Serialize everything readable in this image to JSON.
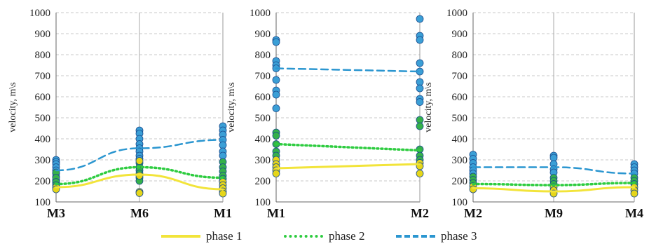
{
  "chart_data": [
    {
      "type": "scatter",
      "ylabel": "velocity, m\\s",
      "ylim": [
        100,
        1000
      ],
      "yticks": [
        100,
        200,
        300,
        400,
        500,
        600,
        700,
        800,
        900,
        1000
      ],
      "categories": [
        "M3",
        "M6",
        "M1"
      ],
      "grid": true,
      "points": [
        {
          "x": "M3",
          "y": 300,
          "color": "#3b9fd6"
        },
        {
          "x": "M3",
          "y": 290,
          "color": "#3b9fd6"
        },
        {
          "x": "M3",
          "y": 280,
          "color": "#3b9fd6"
        },
        {
          "x": "M3",
          "y": 265,
          "color": "#3b9fd6"
        },
        {
          "x": "M3",
          "y": 250,
          "color": "#3b9fd6"
        },
        {
          "x": "M3",
          "y": 235,
          "color": "#3b9fd6"
        },
        {
          "x": "M3",
          "y": 220,
          "color": "#3b9fd6"
        },
        {
          "x": "M3",
          "y": 205,
          "color": "#3b9fd6"
        },
        {
          "x": "M3",
          "y": 200,
          "color": "#3b9fd6"
        },
        {
          "x": "M3",
          "y": 190,
          "color": "#3b9fd6"
        },
        {
          "x": "M3",
          "y": 240,
          "color": "#35b14a"
        },
        {
          "x": "M3",
          "y": 215,
          "color": "#35b14a"
        },
        {
          "x": "M3",
          "y": 195,
          "color": "#35b14a"
        },
        {
          "x": "M3",
          "y": 180,
          "color": "#35b14a"
        },
        {
          "x": "M3",
          "y": 170,
          "color": "#e6d619"
        },
        {
          "x": "M3",
          "y": 160,
          "color": "#e6d619"
        },
        {
          "x": "M6",
          "y": 440,
          "color": "#3b9fd6"
        },
        {
          "x": "M6",
          "y": 425,
          "color": "#3b9fd6"
        },
        {
          "x": "M6",
          "y": 400,
          "color": "#3b9fd6"
        },
        {
          "x": "M6",
          "y": 375,
          "color": "#3b9fd6"
        },
        {
          "x": "M6",
          "y": 355,
          "color": "#3b9fd6"
        },
        {
          "x": "M6",
          "y": 340,
          "color": "#3b9fd6"
        },
        {
          "x": "M6",
          "y": 320,
          "color": "#3b9fd6"
        },
        {
          "x": "M6",
          "y": 305,
          "color": "#3b9fd6"
        },
        {
          "x": "M6",
          "y": 285,
          "color": "#35b14a"
        },
        {
          "x": "M6",
          "y": 265,
          "color": "#35b14a"
        },
        {
          "x": "M6",
          "y": 250,
          "color": "#35b14a"
        },
        {
          "x": "M6",
          "y": 235,
          "color": "#35b14a"
        },
        {
          "x": "M6",
          "y": 215,
          "color": "#35b14a"
        },
        {
          "x": "M6",
          "y": 200,
          "color": "#35b14a"
        },
        {
          "x": "M6",
          "y": 295,
          "color": "#e6d619"
        },
        {
          "x": "M6",
          "y": 225,
          "color": "#e6d619"
        },
        {
          "x": "M6",
          "y": 148,
          "color": "#e6d619"
        },
        {
          "x": "M6",
          "y": 142,
          "color": "#e6d619"
        },
        {
          "x": "M1",
          "y": 460,
          "color": "#3b9fd6"
        },
        {
          "x": "M1",
          "y": 440,
          "color": "#3b9fd6"
        },
        {
          "x": "M1",
          "y": 420,
          "color": "#3b9fd6"
        },
        {
          "x": "M1",
          "y": 395,
          "color": "#3b9fd6"
        },
        {
          "x": "M1",
          "y": 370,
          "color": "#3b9fd6"
        },
        {
          "x": "M1",
          "y": 340,
          "color": "#3b9fd6"
        },
        {
          "x": "M1",
          "y": 320,
          "color": "#3b9fd6"
        },
        {
          "x": "M1",
          "y": 290,
          "color": "#35b14a"
        },
        {
          "x": "M1",
          "y": 265,
          "color": "#35b14a"
        },
        {
          "x": "M1",
          "y": 245,
          "color": "#35b14a"
        },
        {
          "x": "M1",
          "y": 225,
          "color": "#35b14a"
        },
        {
          "x": "M1",
          "y": 210,
          "color": "#35b14a"
        },
        {
          "x": "M1",
          "y": 195,
          "color": "#e6d619"
        },
        {
          "x": "M1",
          "y": 180,
          "color": "#e6d619"
        },
        {
          "x": "M1",
          "y": 165,
          "color": "#e6d619"
        },
        {
          "x": "M1",
          "y": 150,
          "color": "#e6d619"
        },
        {
          "x": "M1",
          "y": 140,
          "color": "#e6d619"
        }
      ],
      "series": [
        {
          "name": "phase 1",
          "values": [
            170,
            230,
            160
          ]
        },
        {
          "name": "phase 2",
          "values": [
            185,
            265,
            215
          ]
        },
        {
          "name": "phase 3",
          "values": [
            250,
            355,
            395
          ]
        }
      ]
    },
    {
      "type": "scatter",
      "ylabel": "velocity, m\\s",
      "ylim": [
        100,
        1000
      ],
      "yticks": [
        100,
        200,
        300,
        400,
        500,
        600,
        700,
        800,
        900,
        1000
      ],
      "categories": [
        "M1",
        "M2"
      ],
      "grid": true,
      "points": [
        {
          "x": "M1",
          "y": 870,
          "color": "#3b9fd6"
        },
        {
          "x": "M1",
          "y": 860,
          "color": "#3b9fd6"
        },
        {
          "x": "M1",
          "y": 770,
          "color": "#3b9fd6"
        },
        {
          "x": "M1",
          "y": 750,
          "color": "#3b9fd6"
        },
        {
          "x": "M1",
          "y": 735,
          "color": "#3b9fd6"
        },
        {
          "x": "M1",
          "y": 680,
          "color": "#3b9fd6"
        },
        {
          "x": "M1",
          "y": 630,
          "color": "#3b9fd6"
        },
        {
          "x": "M1",
          "y": 610,
          "color": "#3b9fd6"
        },
        {
          "x": "M1",
          "y": 545,
          "color": "#3b9fd6"
        },
        {
          "x": "M1",
          "y": 430,
          "color": "#35b14a"
        },
        {
          "x": "M1",
          "y": 415,
          "color": "#35b14a"
        },
        {
          "x": "M1",
          "y": 375,
          "color": "#35b14a"
        },
        {
          "x": "M1",
          "y": 340,
          "color": "#35b14a"
        },
        {
          "x": "M1",
          "y": 320,
          "color": "#35b14a"
        },
        {
          "x": "M1",
          "y": 300,
          "color": "#e6d619"
        },
        {
          "x": "M1",
          "y": 280,
          "color": "#e6d619"
        },
        {
          "x": "M1",
          "y": 265,
          "color": "#e6d619"
        },
        {
          "x": "M1",
          "y": 250,
          "color": "#e6d619"
        },
        {
          "x": "M1",
          "y": 235,
          "color": "#e6d619"
        },
        {
          "x": "M2",
          "y": 970,
          "color": "#3b9fd6"
        },
        {
          "x": "M2",
          "y": 890,
          "color": "#3b9fd6"
        },
        {
          "x": "M2",
          "y": 870,
          "color": "#3b9fd6"
        },
        {
          "x": "M2",
          "y": 760,
          "color": "#3b9fd6"
        },
        {
          "x": "M2",
          "y": 720,
          "color": "#3b9fd6"
        },
        {
          "x": "M2",
          "y": 670,
          "color": "#3b9fd6"
        },
        {
          "x": "M2",
          "y": 640,
          "color": "#3b9fd6"
        },
        {
          "x": "M2",
          "y": 590,
          "color": "#3b9fd6"
        },
        {
          "x": "M2",
          "y": 575,
          "color": "#3b9fd6"
        },
        {
          "x": "M2",
          "y": 490,
          "color": "#35b14a"
        },
        {
          "x": "M2",
          "y": 460,
          "color": "#35b14a"
        },
        {
          "x": "M2",
          "y": 350,
          "color": "#35b14a"
        },
        {
          "x": "M2",
          "y": 320,
          "color": "#35b14a"
        },
        {
          "x": "M2",
          "y": 300,
          "color": "#35b14a"
        },
        {
          "x": "M2",
          "y": 285,
          "color": "#e6d619"
        },
        {
          "x": "M2",
          "y": 270,
          "color": "#e6d619"
        },
        {
          "x": "M2",
          "y": 235,
          "color": "#e6d619"
        }
      ],
      "series": [
        {
          "name": "phase 1",
          "values": [
            260,
            280
          ]
        },
        {
          "name": "phase 2",
          "values": [
            375,
            345
          ]
        },
        {
          "name": "phase 3",
          "values": [
            735,
            720
          ]
        }
      ]
    },
    {
      "type": "scatter",
      "ylabel": "velocity, m\\s",
      "ylim": [
        100,
        1000
      ],
      "yticks": [
        100,
        200,
        300,
        400,
        500,
        600,
        700,
        800,
        900,
        1000
      ],
      "categories": [
        "M2",
        "M9",
        "M4"
      ],
      "grid": true,
      "points": [
        {
          "x": "M2",
          "y": 325,
          "color": "#3b9fd6"
        },
        {
          "x": "M2",
          "y": 305,
          "color": "#3b9fd6"
        },
        {
          "x": "M2",
          "y": 285,
          "color": "#3b9fd6"
        },
        {
          "x": "M2",
          "y": 265,
          "color": "#3b9fd6"
        },
        {
          "x": "M2",
          "y": 250,
          "color": "#3b9fd6"
        },
        {
          "x": "M2",
          "y": 235,
          "color": "#3b9fd6"
        },
        {
          "x": "M2",
          "y": 220,
          "color": "#35b14a"
        },
        {
          "x": "M2",
          "y": 205,
          "color": "#35b14a"
        },
        {
          "x": "M2",
          "y": 190,
          "color": "#35b14a"
        },
        {
          "x": "M2",
          "y": 175,
          "color": "#e6d619"
        },
        {
          "x": "M2",
          "y": 160,
          "color": "#e6d619"
        },
        {
          "x": "M9",
          "y": 320,
          "color": "#3b9fd6"
        },
        {
          "x": "M9",
          "y": 310,
          "color": "#3b9fd6"
        },
        {
          "x": "M9",
          "y": 280,
          "color": "#3b9fd6"
        },
        {
          "x": "M9",
          "y": 255,
          "color": "#3b9fd6"
        },
        {
          "x": "M9",
          "y": 240,
          "color": "#3b9fd6"
        },
        {
          "x": "M9",
          "y": 215,
          "color": "#35b14a"
        },
        {
          "x": "M9",
          "y": 200,
          "color": "#35b14a"
        },
        {
          "x": "M9",
          "y": 185,
          "color": "#35b14a"
        },
        {
          "x": "M9",
          "y": 170,
          "color": "#e6d619"
        },
        {
          "x": "M9",
          "y": 155,
          "color": "#e6d619"
        },
        {
          "x": "M9",
          "y": 140,
          "color": "#e6d619"
        },
        {
          "x": "M4",
          "y": 280,
          "color": "#3b9fd6"
        },
        {
          "x": "M4",
          "y": 265,
          "color": "#3b9fd6"
        },
        {
          "x": "M4",
          "y": 250,
          "color": "#3b9fd6"
        },
        {
          "x": "M4",
          "y": 235,
          "color": "#3b9fd6"
        },
        {
          "x": "M4",
          "y": 215,
          "color": "#35b14a"
        },
        {
          "x": "M4",
          "y": 200,
          "color": "#35b14a"
        },
        {
          "x": "M4",
          "y": 185,
          "color": "#35b14a"
        },
        {
          "x": "M4",
          "y": 170,
          "color": "#e6d619"
        },
        {
          "x": "M4",
          "y": 155,
          "color": "#e6d619"
        },
        {
          "x": "M4",
          "y": 140,
          "color": "#e6d619"
        }
      ],
      "series": [
        {
          "name": "phase 1",
          "values": [
            165,
            150,
            170
          ]
        },
        {
          "name": "phase 2",
          "values": [
            185,
            180,
            190
          ]
        },
        {
          "name": "phase 3",
          "values": [
            265,
            265,
            235
          ]
        }
      ]
    }
  ],
  "legend": {
    "items": [
      {
        "label": "phase 1",
        "color": "#f2e43a",
        "style": "solid"
      },
      {
        "label": "phase 2",
        "color": "#2ecc40",
        "style": "dotted"
      },
      {
        "label": "phase 3",
        "color": "#2b96d0",
        "style": "dashed"
      }
    ]
  },
  "colors": {
    "phase1": "#f2e43a",
    "phase2": "#2ecc40",
    "phase3": "#2b96d0",
    "grid": "#c8c8c8",
    "axis": "#666666"
  }
}
